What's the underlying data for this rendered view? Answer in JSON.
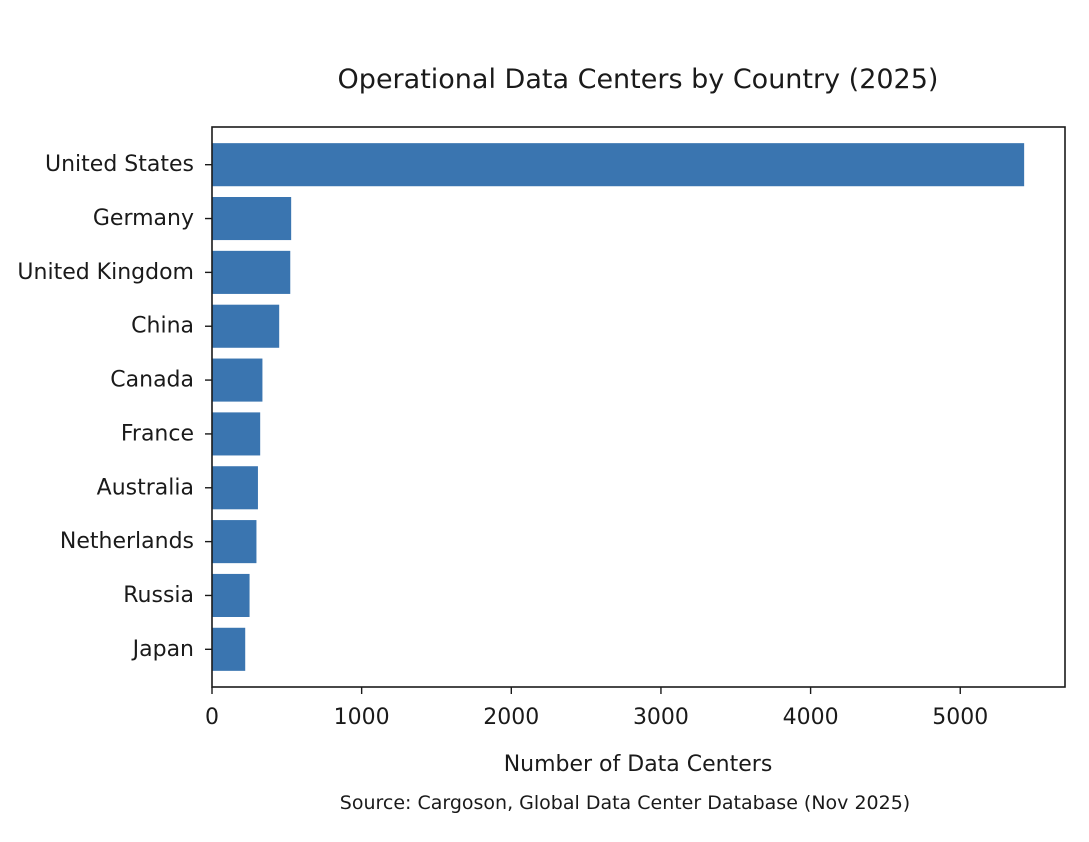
{
  "chart_data": {
    "type": "bar",
    "orientation": "horizontal",
    "title": "Operational Data Centers by Country (2025)",
    "xlabel": "Number of Data Centers",
    "ylabel": "",
    "source_note": "Source: Cargoson, Global Data Center Database (Nov 2025)",
    "categories": [
      "United States",
      "Germany",
      "United Kingdom",
      "China",
      "Canada",
      "France",
      "Australia",
      "Netherlands",
      "Russia",
      "Japan"
    ],
    "values": [
      5427,
      529,
      523,
      449,
      337,
      322,
      307,
      297,
      251,
      222
    ],
    "xlim": [
      0,
      5700
    ],
    "x_ticks": [
      0,
      1000,
      2000,
      3000,
      4000,
      5000
    ],
    "x_tick_labels": [
      "0",
      "1000",
      "2000",
      "3000",
      "4000",
      "5000"
    ],
    "bar_color": "#3a75b0",
    "grid": false,
    "legend": "none"
  }
}
